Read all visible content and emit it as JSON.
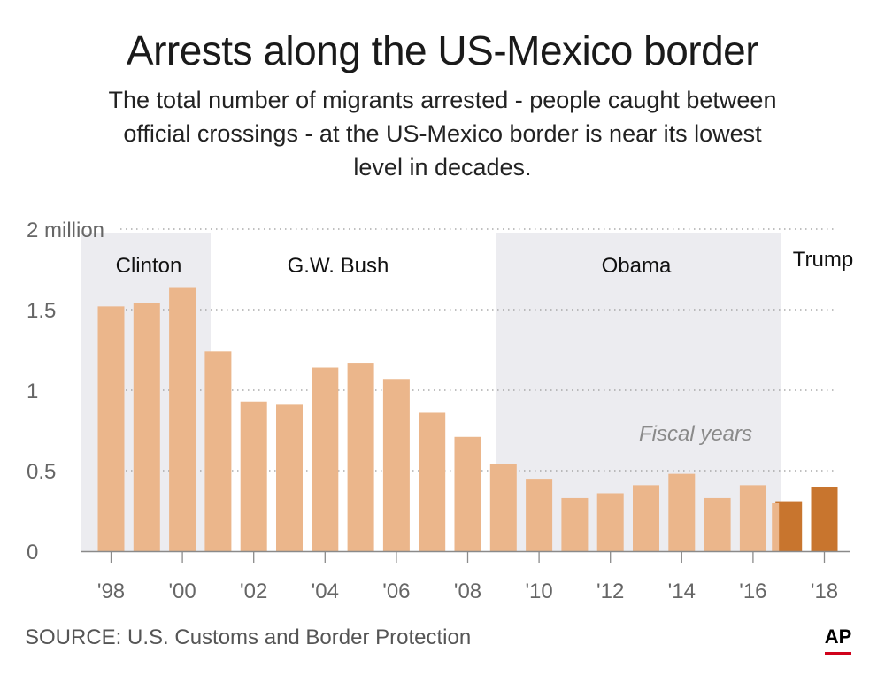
{
  "header": {
    "title": "Arrests along the US-Mexico border",
    "subtitle": "The total number of migrants arrested - people caught between official crossings - at the US-Mexico border is near its lowest level in decades."
  },
  "footer": {
    "source": "SOURCE: U.S. Customs and Border Protection",
    "logo": "AP"
  },
  "colors": {
    "bar": "#ebb68b",
    "bar_trump": "#c8752e",
    "band": "#ececf0",
    "grid": "#9a9a9a",
    "axis_text": "#666666",
    "ap_red": "#d0021b"
  },
  "chart_data": {
    "type": "bar",
    "title": "Arrests along the US-Mexico border",
    "xlabel": "",
    "ylabel": "",
    "unit": "million",
    "note": "Fiscal years",
    "x": [
      1998,
      1999,
      2000,
      2001,
      2002,
      2003,
      2004,
      2005,
      2006,
      2007,
      2008,
      2009,
      2010,
      2011,
      2012,
      2013,
      2014,
      2015,
      2016,
      2017,
      2018
    ],
    "values": [
      1.52,
      1.54,
      1.64,
      1.24,
      0.93,
      0.91,
      1.14,
      1.17,
      1.07,
      0.86,
      0.71,
      0.54,
      0.45,
      0.33,
      0.36,
      0.41,
      0.48,
      0.33,
      0.41,
      0.31,
      0.4
    ],
    "partial_bar": {
      "year": 2017,
      "value": 0.3
    },
    "highlight_years": [
      2017,
      2018
    ],
    "ylim": [
      0,
      2
    ],
    "yticks": [
      {
        "value": 0,
        "label": "0"
      },
      {
        "value": 0.5,
        "label": "0.5"
      },
      {
        "value": 1,
        "label": "1"
      },
      {
        "value": 1.5,
        "label": "1.5"
      },
      {
        "value": 2,
        "label": "2 million"
      }
    ],
    "xticks": [
      {
        "year": 1998,
        "label": "'98"
      },
      {
        "year": 2000,
        "label": "'00"
      },
      {
        "year": 2002,
        "label": "'02"
      },
      {
        "year": 2004,
        "label": "'04"
      },
      {
        "year": 2006,
        "label": "'06"
      },
      {
        "year": 2008,
        "label": "'08"
      },
      {
        "year": 2010,
        "label": "'10"
      },
      {
        "year": 2012,
        "label": "'12"
      },
      {
        "year": 2014,
        "label": "'14"
      },
      {
        "year": 2016,
        "label": "'16"
      },
      {
        "year": 2018,
        "label": "'18"
      }
    ],
    "administrations": [
      {
        "name": "Clinton",
        "shaded": true
      },
      {
        "name": "G.W. Bush",
        "shaded": false
      },
      {
        "name": "Obama",
        "shaded": true
      },
      {
        "name": "Trump",
        "shaded": false
      }
    ],
    "grid": true
  }
}
